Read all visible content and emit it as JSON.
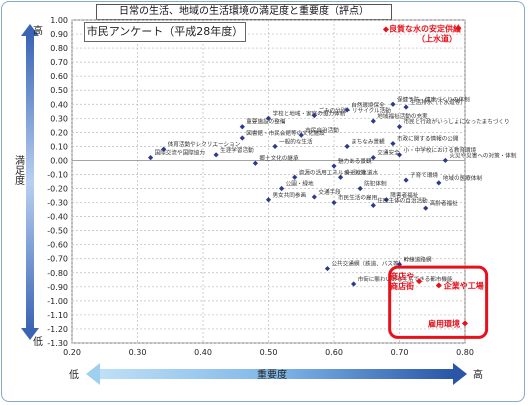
{
  "chart_title": "日常の生活、地域の生活環境の満足度と重要度（評点）",
  "panel_label": "市民アンケート（平成28年度）",
  "axes": {
    "y_top_label": "高",
    "y_mid_label": "満足度",
    "y_bottom_label": "低",
    "x_left_label": "低",
    "x_mid_label": "重要度",
    "x_right_label": "高"
  },
  "colors": {
    "series": "#2e3a8c",
    "highlight": "#e8101a",
    "axis_arrow": "#3a64b4"
  },
  "chart_data": {
    "type": "scatter",
    "xlim": [
      0.2,
      0.8
    ],
    "ylim": [
      -1.3,
      1.0
    ],
    "xticks": [
      "0.20",
      "0.30",
      "0.40",
      "0.50",
      "0.60",
      "0.70",
      "0.80"
    ],
    "yticks": [
      "1.00",
      "0.90",
      "0.80",
      "0.70",
      "0.60",
      "0.50",
      "0.40",
      "0.30",
      "0.20",
      "0.10",
      "0.00",
      "-0.10",
      "-0.20",
      "-0.30",
      "-0.40",
      "-0.50",
      "-0.60",
      "-0.70",
      "-0.80",
      "-0.90",
      "-1.00",
      "-1.10",
      "-1.20",
      "-1.30"
    ],
    "grid": true,
    "points": [
      {
        "label": "学校と地域・家庭の協力体制",
        "x": 0.5,
        "y": 0.3
      },
      {
        "label": "ごみの分別・リサイクル活動",
        "x": 0.57,
        "y": 0.32
      },
      {
        "label": "自然環境保全",
        "x": 0.62,
        "y": 0.36
      },
      {
        "label": "保健予防・健康づくりの体制",
        "x": 0.69,
        "y": 0.4
      },
      {
        "label": "生活排水（下水道等）",
        "x": 0.71,
        "y": 0.38
      },
      {
        "label": "重要施設の整備",
        "x": 0.46,
        "y": 0.24
      },
      {
        "label": "地域福祉活動の充実",
        "x": 0.66,
        "y": 0.28
      },
      {
        "label": "市民と行政がいっしょになったまちづくり",
        "x": 0.7,
        "y": 0.24
      },
      {
        "label": "図書館・市民会館等の文化施設",
        "x": 0.46,
        "y": 0.16
      },
      {
        "label": "市民自治活動",
        "x": 0.55,
        "y": 0.18
      },
      {
        "label": "市政に関する情報の公開",
        "x": 0.69,
        "y": 0.12
      },
      {
        "label": "体育活動やレクリエーション",
        "x": 0.34,
        "y": 0.08
      },
      {
        "label": "一般的な生活",
        "x": 0.51,
        "y": 0.1
      },
      {
        "label": "まちなみ景観",
        "x": 0.62,
        "y": 0.1
      },
      {
        "label": "生涯学習活動",
        "x": 0.42,
        "y": 0.04
      },
      {
        "label": "小・中学校における教育環境",
        "x": 0.7,
        "y": 0.04
      },
      {
        "label": "国際交流や国際協力",
        "x": 0.32,
        "y": 0.02
      },
      {
        "label": "郷土文化の継承",
        "x": 0.48,
        "y": -0.02
      },
      {
        "label": "魅力ある景観",
        "x": 0.6,
        "y": -0.04
      },
      {
        "label": "交通安全",
        "x": 0.66,
        "y": 0.02
      },
      {
        "label": "火災や災害への対策・体制",
        "x": 0.77,
        "y": 0.0
      },
      {
        "label": "資源の活用エネルギー対策",
        "x": 0.54,
        "y": -0.12
      },
      {
        "label": "身近な水道水",
        "x": 0.61,
        "y": -0.12
      },
      {
        "label": "子育て環境",
        "x": 0.71,
        "y": -0.14
      },
      {
        "label": "地域の医療体制",
        "x": 0.76,
        "y": -0.16
      },
      {
        "label": "高齢者福祉",
        "x": 0.74,
        "y": -0.34
      },
      {
        "label": "公園・緑地",
        "x": 0.52,
        "y": -0.2
      },
      {
        "label": "防犯体制",
        "x": 0.64,
        "y": -0.2
      },
      {
        "label": "男女共同参画",
        "x": 0.5,
        "y": -0.28
      },
      {
        "label": "交通手段",
        "x": 0.57,
        "y": -0.26
      },
      {
        "label": "障害者福祉",
        "x": 0.68,
        "y": -0.28
      },
      {
        "label": "住民主体の自治活動",
        "x": 0.66,
        "y": -0.32
      },
      {
        "label": "市民生活の雇用",
        "x": 0.6,
        "y": -0.3
      },
      {
        "label": "幹線道路網",
        "x": 0.7,
        "y": -0.74
      },
      {
        "label": "公共交通網（鉄道、バス等）",
        "x": 0.59,
        "y": -0.77
      },
      {
        "label": "市街に賑わいある生活できる都市機能",
        "x": 0.63,
        "y": -0.88
      }
    ],
    "highlighted": [
      {
        "label": "良質な水の安定供給（上水道）",
        "x": 0.79,
        "y": 0.94
      },
      {
        "label": "商店や商店街",
        "x": 0.73,
        "y": -0.86
      },
      {
        "label": "企業や工場",
        "x": 0.76,
        "y": -0.89
      },
      {
        "label": "雇用環境",
        "x": 0.8,
        "y": -1.16
      }
    ],
    "highlight_box_label": ""
  }
}
